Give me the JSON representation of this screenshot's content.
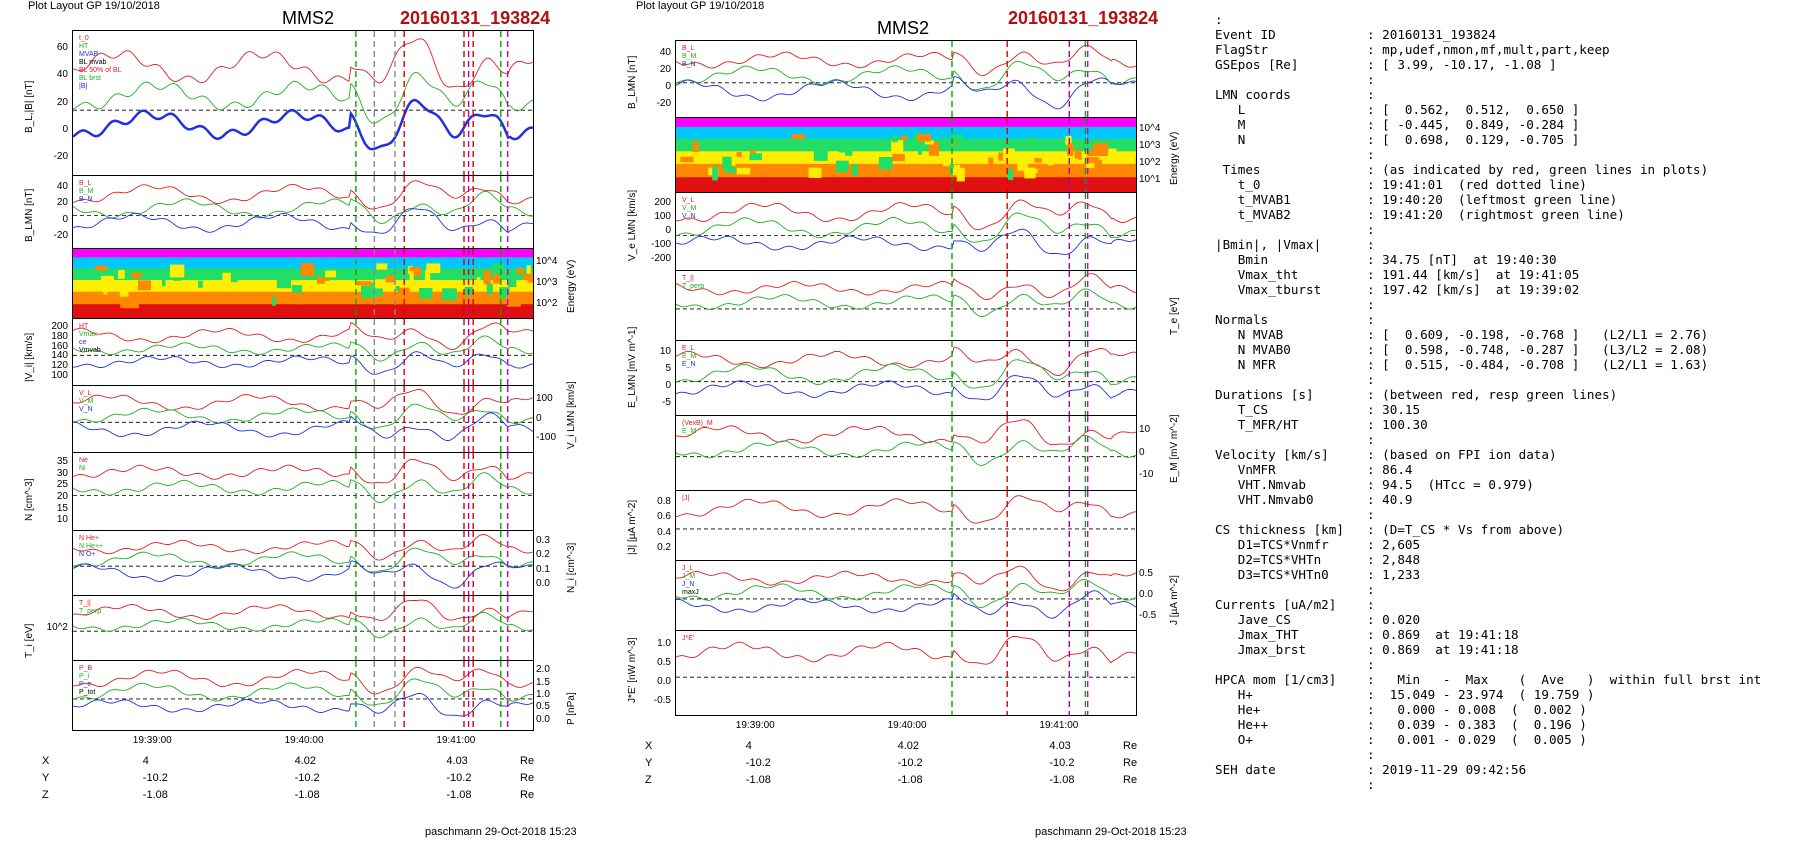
{
  "left_plot": {
    "header": "Plot Layout GP 19/10/2018",
    "spacecraft": "MMS2",
    "event": "20160131_193824",
    "footer": "paschmann 29-Oct-2018 15:23",
    "time_ticks": [
      "19:39:00",
      "19:40:00",
      "19:41:00"
    ],
    "position_table": [
      {
        "label": "X",
        "values": [
          "4",
          "4.02",
          "4.03"
        ],
        "unit": "Re"
      },
      {
        "label": "Y",
        "values": [
          "-10.2",
          "-10.2",
          "-10.2"
        ],
        "unit": "Re"
      },
      {
        "label": "Z",
        "values": [
          "-1.08",
          "-1.08",
          "-1.08"
        ],
        "unit": "Re"
      }
    ],
    "panels": [
      {
        "ylabel": "B_L,|B| [nT]",
        "side": "left",
        "ticks": [
          "60",
          "40",
          "20",
          "0",
          "-20"
        ],
        "legend": [
          "t_0",
          "HT",
          "MVAB",
          "BL mvab",
          "BL 50% of BL",
          "BL brst",
          "|B|"
        ]
      },
      {
        "ylabel": "B_LMN [nT]",
        "side": "left",
        "ticks": [
          "40",
          "20",
          "0",
          "-20"
        ],
        "legend": [
          "B_L",
          "B_M",
          "B_N"
        ]
      },
      {
        "ylabel": "Energy (eV)",
        "side": "right",
        "ticks": [
          "10^4",
          "10^3",
          "10^2"
        ]
      },
      {
        "ylabel": "|V_i| [km/s]",
        "side": "left",
        "ticks": [
          "200",
          "180",
          "160",
          "140",
          "120",
          "100"
        ],
        "legend": [
          "HT",
          "Vmax",
          "ce",
          "Vmvab"
        ]
      },
      {
        "ylabel": "V_i LMN [km/s]",
        "side": "right",
        "ticks": [
          "100",
          "0",
          "-100"
        ],
        "legend": [
          "V_L",
          "V_M",
          "V_N"
        ]
      },
      {
        "ylabel": "N [cm^-3]",
        "side": "left",
        "ticks": [
          "35",
          "30",
          "25",
          "20",
          "15",
          "10"
        ],
        "legend": [
          "Ne",
          "Ni"
        ]
      },
      {
        "ylabel": "N_i [cm^-3]",
        "side": "right",
        "ticks": [
          "0.3",
          "0.2",
          "0.1",
          "0.0"
        ],
        "legend": [
          "N He+",
          "N He++",
          "N O+"
        ]
      },
      {
        "ylabel": "T_i [eV]",
        "side": "left",
        "ticks": [
          "10^2"
        ],
        "legend": [
          "T_||",
          "T_perp"
        ]
      },
      {
        "ylabel": "P [nPa]",
        "side": "right",
        "ticks": [
          "2.0",
          "1.5",
          "1.0",
          "0.5",
          "0.0"
        ],
        "legend": [
          "P_B",
          "P_i",
          "P_e",
          "P_tot"
        ]
      }
    ]
  },
  "right_plot": {
    "header": "Plot layout GP 19/10/2018",
    "spacecraft": "MMS2",
    "event": "20160131_193824",
    "footer": "paschmann 29-Oct-2018 15:23",
    "time_ticks": [
      "19:39:00",
      "19:40:00",
      "19:41:00"
    ],
    "position_table": [
      {
        "label": "X",
        "values": [
          "4",
          "4.02",
          "4.03"
        ],
        "unit": "Re"
      },
      {
        "label": "Y",
        "values": [
          "-10.2",
          "-10.2",
          "-10.2"
        ],
        "unit": "Re"
      },
      {
        "label": "Z",
        "values": [
          "-1.08",
          "-1.08",
          "-1.08"
        ],
        "unit": "Re"
      }
    ],
    "panels": [
      {
        "ylabel": "B_LMN [nT]",
        "side": "left",
        "ticks": [
          "40",
          "20",
          "0",
          "-20"
        ],
        "legend": [
          "B_L",
          "B_M",
          "B_N"
        ]
      },
      {
        "ylabel": "Energy (eV)",
        "side": "right",
        "ticks": [
          "10^4",
          "10^3",
          "10^2",
          "10^1"
        ]
      },
      {
        "ylabel": "V_e LMN [km/s]",
        "side": "left",
        "ticks": [
          "200",
          "100",
          "0",
          "-100",
          "-200"
        ],
        "legend": [
          "V_L",
          "V_M",
          "V_N"
        ]
      },
      {
        "ylabel": "T_e [eV]",
        "side": "right",
        "ticks": [],
        "legend": [
          "T_||",
          "T_perp"
        ]
      },
      {
        "ylabel": "E_LMN [mV m^-1]",
        "side": "left",
        "ticks": [
          "10",
          "5",
          "0",
          "-5"
        ],
        "legend": [
          "E_L",
          "E_M",
          "E_N"
        ]
      },
      {
        "ylabel": "E_M [mV m^-2]",
        "side": "right",
        "ticks": [
          "10",
          "0",
          "-10"
        ],
        "legend": [
          "(VexB)_M",
          "E_M"
        ]
      },
      {
        "ylabel": "|J| [µA m^-2]",
        "side": "left",
        "ticks": [
          "0.8",
          "0.6",
          "0.4",
          "0.2"
        ],
        "legend": [
          "|J|"
        ]
      },
      {
        "ylabel": "J [µA m^-2]",
        "side": "right",
        "ticks": [
          "0.5",
          "0.0",
          "-0.5"
        ],
        "legend": [
          "J_L",
          "J_M",
          "J_N",
          "maxJ"
        ]
      },
      {
        "ylabel": "J*E' [nW m^-3]",
        "side": "left",
        "ticks": [
          "1.0",
          "0.5",
          "0.0",
          "-0.5"
        ],
        "legend": [
          "J*E'"
        ]
      }
    ]
  },
  "info": [
    {
      "k": ":",
      "v": ""
    },
    {
      "k": "Event ID",
      "v": ": 20160131_193824"
    },
    {
      "k": "FlagStr",
      "v": ": mp,udef,nmon,mf,mult,part,keep"
    },
    {
      "k": "GSEpos [Re]",
      "v": ": [ 3.99, -10.17, -1.08 ]"
    },
    {
      "k": "",
      "v": ":"
    },
    {
      "k": "LMN coords",
      "v": ":"
    },
    {
      "k": "   L",
      "v": ": [  0.562,  0.512,  0.650 ]"
    },
    {
      "k": "   M",
      "v": ": [ -0.445,  0.849, -0.284 ]"
    },
    {
      "k": "   N",
      "v": ": [  0.698,  0.129, -0.705 ]"
    },
    {
      "k": "",
      "v": ":"
    },
    {
      "k": " Times",
      "v": ": (as indicated by red, green lines in plots)"
    },
    {
      "k": "   t_0",
      "v": ": 19:41:01  (red dotted line)"
    },
    {
      "k": "   t_MVAB1",
      "v": ": 19:40:20  (leftmost green line)"
    },
    {
      "k": "   t_MVAB2",
      "v": ": 19:41:20  (rightmost green line)"
    },
    {
      "k": "",
      "v": ":"
    },
    {
      "k": "|Bmin|, |Vmax|",
      "v": ":"
    },
    {
      "k": "   Bmin",
      "v": ": 34.75 [nT]  at 19:40:30"
    },
    {
      "k": "   Vmax_tht",
      "v": ": 191.44 [km/s]  at 19:41:05"
    },
    {
      "k": "   Vmax_tburst",
      "v": ": 197.42 [km/s]  at 19:39:02"
    },
    {
      "k": "",
      "v": ":"
    },
    {
      "k": "Normals",
      "v": ":"
    },
    {
      "k": "   N MVAB",
      "v": ": [  0.609, -0.198, -0.768 ]   (L2/L1 = 2.76)"
    },
    {
      "k": "   N MVAB0",
      "v": ": [  0.598, -0.748, -0.287 ]   (L3/L2 = 2.08)"
    },
    {
      "k": "   N MFR",
      "v": ": [  0.515, -0.484, -0.708 ]   (L2/L1 = 1.63)"
    },
    {
      "k": "",
      "v": ":"
    },
    {
      "k": "Durations [s]",
      "v": ": (between red, resp green lines)"
    },
    {
      "k": "   T_CS",
      "v": ": 30.15"
    },
    {
      "k": "   T_MFR/HT",
      "v": ": 100.30"
    },
    {
      "k": "",
      "v": ":"
    },
    {
      "k": "Velocity [km/s]",
      "v": ": (based on FPI ion data)"
    },
    {
      "k": "   VnMFR",
      "v": ": 86.4"
    },
    {
      "k": "   VHT.Nmvab",
      "v": ": 94.5  (HTcc = 0.979)"
    },
    {
      "k": "   VHT.Nmvab0",
      "v": ": 40.9"
    },
    {
      "k": "",
      "v": ":"
    },
    {
      "k": "CS thickness [km]",
      "v": ": (D=T_CS * Vs from above)"
    },
    {
      "k": "   D1=TCS*Vnmfr",
      "v": ": 2,605"
    },
    {
      "k": "   D2=TCS*VHTn",
      "v": ": 2,848"
    },
    {
      "k": "   D3=TCS*VHTn0",
      "v": ": 1,233"
    },
    {
      "k": "",
      "v": ":"
    },
    {
      "k": "Currents [uA/m2]",
      "v": ":"
    },
    {
      "k": "   Jave_CS",
      "v": ": 0.020"
    },
    {
      "k": "   Jmax_THT",
      "v": ": 0.869  at 19:41:18"
    },
    {
      "k": "   Jmax_brst",
      "v": ": 0.869  at 19:41:18"
    },
    {
      "k": "",
      "v": ":"
    },
    {
      "k": "HPCA mom [1/cm3]",
      "v": ":   Min   -  Max    (  Ave   )  within full brst int"
    },
    {
      "k": "   H+",
      "v": ":  15.049 - 23.974  ( 19.759 )"
    },
    {
      "k": "   He+",
      "v": ":   0.000 - 0.008  (  0.002 )"
    },
    {
      "k": "   He++",
      "v": ":   0.039 - 0.383  (  0.196 )"
    },
    {
      "k": "   O+",
      "v": ":   0.001 - 0.029  (  0.005 )"
    },
    {
      "k": "",
      "v": ":"
    },
    {
      "k": "SEH date",
      "v": ": 2019-11-29 09:42:56"
    },
    {
      "k": "",
      "v": ":"
    }
  ],
  "chart_data": [
    {
      "type": "line",
      "title": "MMS2 20160131_193824 (left)",
      "x_ticks": [
        "19:39:00",
        "19:40:00",
        "19:41:00"
      ],
      "markers": {
        "green_dashed": [
          "19:40:20",
          "19:41:20"
        ],
        "red_dashed": [
          "19:40:35"
        ],
        "red_dotted": [
          "19:41:01"
        ],
        "magenta_dashed": [
          "19:41:08"
        ],
        "purple_dashed": [
          "19:41:02"
        ]
      },
      "series": [
        {
          "name": "BL brst",
          "approx_range": [
            -25,
            15
          ]
        },
        {
          "name": "|B|",
          "approx_range": [
            35,
            55
          ]
        }
      ]
    },
    {
      "type": "line",
      "title": "MMS2 20160131_193824 (right)",
      "x_ticks": [
        "19:39:00",
        "19:40:00",
        "19:41:00"
      ],
      "series": [
        {
          "name": "|J|",
          "approx_peak": 0.8
        },
        {
          "name": "J*E'",
          "approx_peak": 1.0
        }
      ]
    }
  ]
}
